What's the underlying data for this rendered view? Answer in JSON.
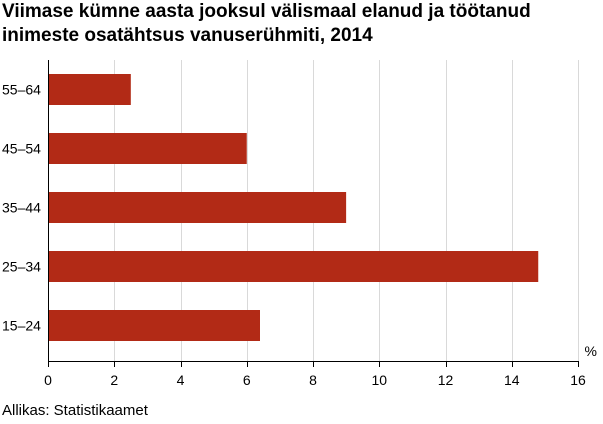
{
  "title": "Viimase kümne aasta jooksul välismaal elanud ja töötanud inimeste osatähtsus vanuserühmiti, 2014",
  "source": "Allikas: Statistikaamet",
  "colors": {
    "bar": "#b22a16",
    "grid": "#d9d9d9",
    "axis": "#000000"
  },
  "chart_data": {
    "type": "bar",
    "orientation": "horizontal",
    "title": "Viimase kümne aasta jooksul välismaal elanud ja töötanud inimeste osatähtsus vanuserühmiti, 2014",
    "xlabel": "%",
    "ylabel": "",
    "categories": [
      "55–64",
      "45–54",
      "35–44",
      "25–34",
      "15–24"
    ],
    "values": [
      2.5,
      6.0,
      9.0,
      14.8,
      6.4
    ],
    "xlim": [
      0,
      16
    ],
    "xticks": [
      0,
      2,
      4,
      6,
      8,
      10,
      12,
      14,
      16
    ],
    "grid": true,
    "legend": "none"
  }
}
